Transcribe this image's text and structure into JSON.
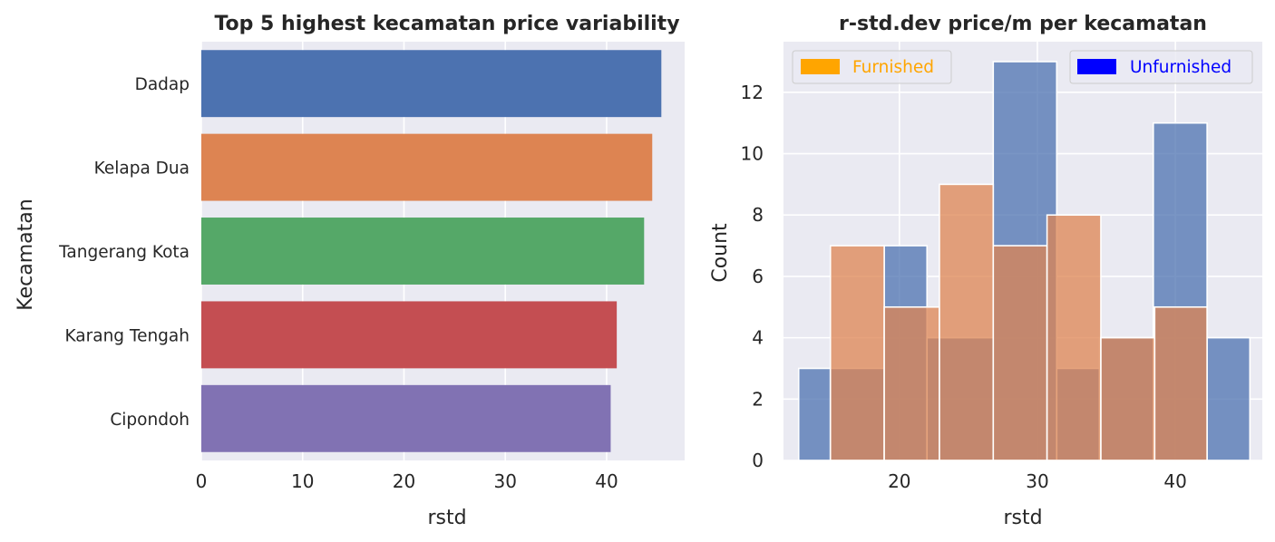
{
  "colors": {
    "panel_bg": "#eaeaf2",
    "grid": "#ffffff",
    "text": "#262626",
    "legend_furnished": "#ffa500",
    "legend_unfurnished": "#0000ff",
    "hist_unfurnished": "#4c72b0",
    "hist_furnished": "#dd8452"
  },
  "chart_data": [
    {
      "type": "bar",
      "orientation": "horizontal",
      "title": "Top 5 highest kecamatan price variability",
      "xlabel": "rstd",
      "ylabel": "Kecamatan",
      "categories": [
        "Dadap",
        "Kelapa Dua",
        "Tangerang Kota",
        "Karang Tengah",
        "Cipondoh"
      ],
      "values": [
        45.4,
        44.5,
        43.7,
        41.0,
        40.4
      ],
      "bar_colors": [
        "#4c72b0",
        "#dd8452",
        "#55a868",
        "#c44e52",
        "#8172b3"
      ],
      "xlim": [
        0,
        47.7
      ],
      "xticks": [
        0,
        10,
        20,
        30,
        40
      ],
      "grid": true
    },
    {
      "type": "histogram",
      "title": "r-std.dev price/m per kecamatan",
      "xlabel": "rstd",
      "ylabel": "Count",
      "xlim": [
        11.6,
        46.3
      ],
      "ylim": [
        0,
        13.65
      ],
      "xticks": [
        20,
        30,
        40
      ],
      "yticks": [
        0,
        2,
        4,
        6,
        8,
        10,
        12
      ],
      "grid": true,
      "legend": [
        {
          "label": "Furnished",
          "color": "#ffa500",
          "placement": "upper left"
        },
        {
          "label": "Unfurnished",
          "color": "#0000ff",
          "placement": "upper right"
        }
      ],
      "series": [
        {
          "name": "Unfurnished",
          "color": "#4c72b0",
          "bins": [
            [
              12.7,
              15.0,
              3
            ],
            [
              15.0,
              18.9,
              3
            ],
            [
              18.9,
              22.0,
              7
            ],
            [
              22.0,
              26.8,
              4
            ],
            [
              26.8,
              31.4,
              13
            ],
            [
              31.4,
              34.5,
              3
            ],
            [
              34.5,
              38.4,
              4
            ],
            [
              38.4,
              42.3,
              11
            ],
            [
              42.3,
              45.4,
              4
            ]
          ]
        },
        {
          "name": "Furnished",
          "color": "#dd8452",
          "bins": [
            [
              15.0,
              18.9,
              7
            ],
            [
              18.9,
              22.9,
              5
            ],
            [
              22.9,
              26.8,
              9
            ],
            [
              26.8,
              30.7,
              7
            ],
            [
              30.7,
              34.6,
              8
            ],
            [
              34.6,
              38.5,
              4
            ],
            [
              38.5,
              42.3,
              5
            ]
          ]
        }
      ]
    }
  ]
}
